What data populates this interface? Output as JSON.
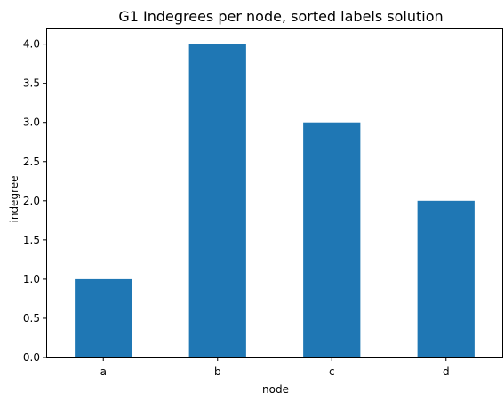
{
  "chart_data": {
    "type": "bar",
    "title": "G1 Indegrees per node, sorted labels solution",
    "xlabel": "node",
    "ylabel": "indegree",
    "categories": [
      "a",
      "b",
      "c",
      "d"
    ],
    "values": [
      1,
      4,
      3,
      2
    ],
    "ylim": [
      0,
      4.2
    ],
    "yticks": [
      "0.0",
      "0.5",
      "1.0",
      "1.5",
      "2.0",
      "2.5",
      "3.0",
      "3.5",
      "4.0"
    ],
    "grid": false,
    "legend": "none",
    "bar_color": "#1f77b4"
  }
}
